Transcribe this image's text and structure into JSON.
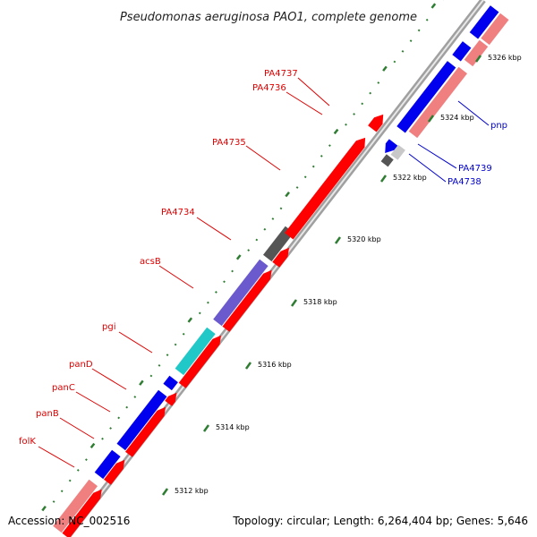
{
  "title": "Pseudomonas aeruginosa PAO1, complete genome",
  "footer": {
    "accession": "Accession: NC_002516",
    "summary": "Topology: circular; Length: 6,264,404 bp; Genes: 5,646"
  },
  "colors": {
    "backbone": "#999999",
    "tick_major": "#2e7d32",
    "tick_minor": "#2e7d32",
    "reverse_label": "#dd0000",
    "forward_label": "#0000cc",
    "red": "#ff0000",
    "blue": "#0000ee",
    "salmon": "#f08080",
    "cyan": "#20c8c8",
    "purple": "#6a5acd",
    "darkgray": "#555555",
    "lightgray": "#c8c8c8"
  },
  "scale_labels": [
    "5312 kbp",
    "5314 kbp",
    "5316 kbp",
    "5318 kbp",
    "5320 kbp",
    "5322 kbp",
    "5324 kbp",
    "5326 kbp"
  ],
  "gene_labels_left": [
    "PA4737",
    "PA4736",
    "PA4735",
    "PA4734",
    "acsB",
    "pgi",
    "panD",
    "panC",
    "panB",
    "folK"
  ],
  "gene_labels_right": [
    "pnp",
    "PA4739",
    "PA4738"
  ]
}
